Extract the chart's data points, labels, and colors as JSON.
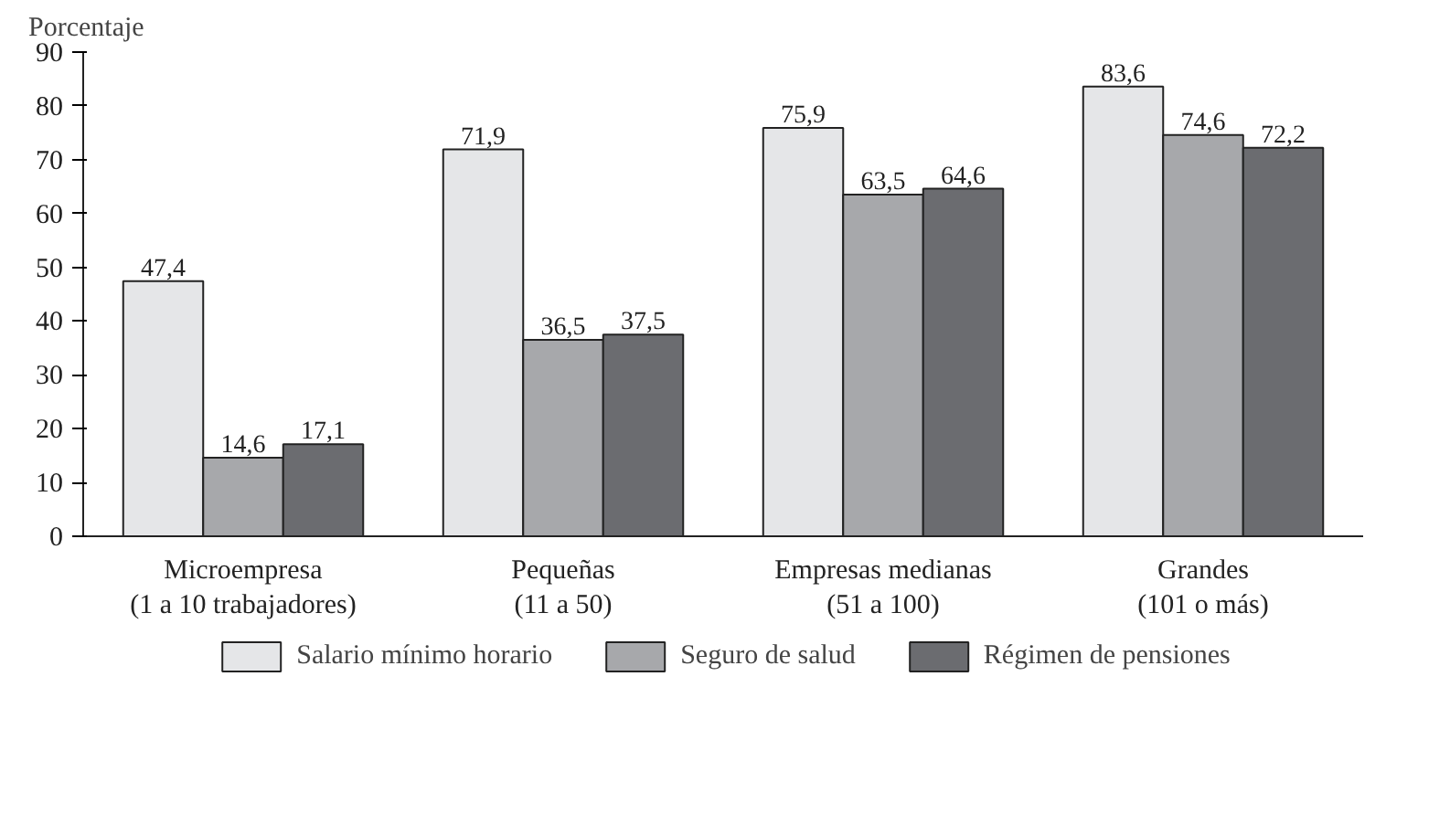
{
  "chart_data": {
    "type": "bar",
    "ylabel": "Porcentaje",
    "categories": [
      "Microempresa\n(1 a 10 trabajadores)",
      "Pequeñas\n(11 a 50)",
      "Empresas medianas\n(51 a 100)",
      "Grandes\n(101 o más)"
    ],
    "series": [
      {
        "name": "Salario mínimo horario",
        "color": "#e5e6e8",
        "values": [
          47.4,
          71.9,
          75.9,
          83.6
        ],
        "value_labels": [
          "47,4",
          "71,9",
          "75,9",
          "83,6"
        ]
      },
      {
        "name": "Seguro de salud",
        "color": "#a7a8ab",
        "values": [
          14.6,
          36.5,
          63.5,
          74.6
        ],
        "value_labels": [
          "14,6",
          "36,5",
          "63,5",
          "74,6"
        ]
      },
      {
        "name": "Régimen de pensiones",
        "color": "#6b6c70",
        "values": [
          17.1,
          37.5,
          64.6,
          72.2
        ],
        "value_labels": [
          "17,1",
          "37,5",
          "64,6",
          "72,2"
        ]
      }
    ],
    "ylim": [
      0,
      90
    ],
    "yticks": [
      0,
      10,
      20,
      30,
      40,
      50,
      60,
      70,
      80,
      90
    ],
    "grid": false,
    "legend": "bottom"
  }
}
